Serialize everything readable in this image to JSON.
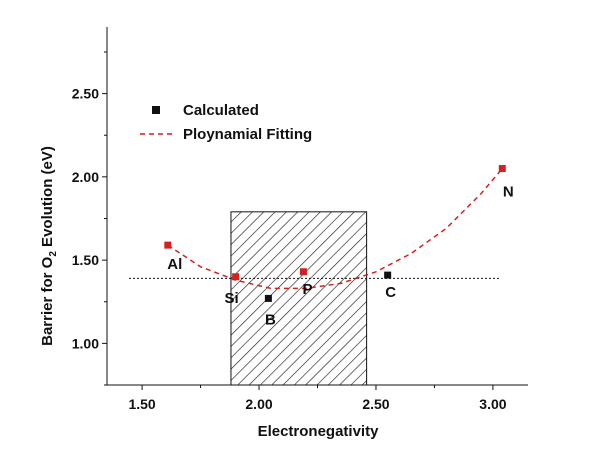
{
  "chart_data": {
    "type": "scatter",
    "xlabel": "Electronegativity",
    "ylabel_prefix": "Barrier for O",
    "ylabel_sub": "2",
    "ylabel_suffix": " Evolution (eV)",
    "xlim": [
      1.35,
      3.15
    ],
    "ylim": [
      0.75,
      2.9
    ],
    "xticks": [
      "1.50",
      "2.00",
      "2.50",
      "3.00"
    ],
    "yticks": [
      "1.00",
      "1.50",
      "2.00",
      "2.50"
    ],
    "legend": {
      "position": "top-left",
      "entries": [
        "Calculated",
        "Ploynamial Fitting"
      ]
    },
    "points": [
      {
        "label": "Al",
        "x": 1.61,
        "y": 1.59,
        "color": "#d42020"
      },
      {
        "label": "Si",
        "x": 1.9,
        "y": 1.4,
        "color": "#d42020"
      },
      {
        "label": "B",
        "x": 2.04,
        "y": 1.27,
        "color": "#111111"
      },
      {
        "label": "P",
        "x": 2.19,
        "y": 1.43,
        "color": "#d42020"
      },
      {
        "label": "C",
        "x": 2.55,
        "y": 1.41,
        "color": "#111111"
      },
      {
        "label": "N",
        "x": 3.04,
        "y": 2.05,
        "color": "#d42020"
      }
    ],
    "fit": {
      "x": [
        1.61,
        1.75,
        1.9,
        2.05,
        2.2,
        2.35,
        2.5,
        2.65,
        2.8,
        2.95,
        3.04
      ],
      "y": [
        1.59,
        1.46,
        1.38,
        1.33,
        1.33,
        1.36,
        1.43,
        1.54,
        1.69,
        1.9,
        2.05
      ],
      "color": "#d42020"
    },
    "reference_line_y": 1.39,
    "hatched_region": {
      "x": [
        1.88,
        2.46
      ],
      "y": [
        0.75,
        1.79
      ]
    }
  }
}
